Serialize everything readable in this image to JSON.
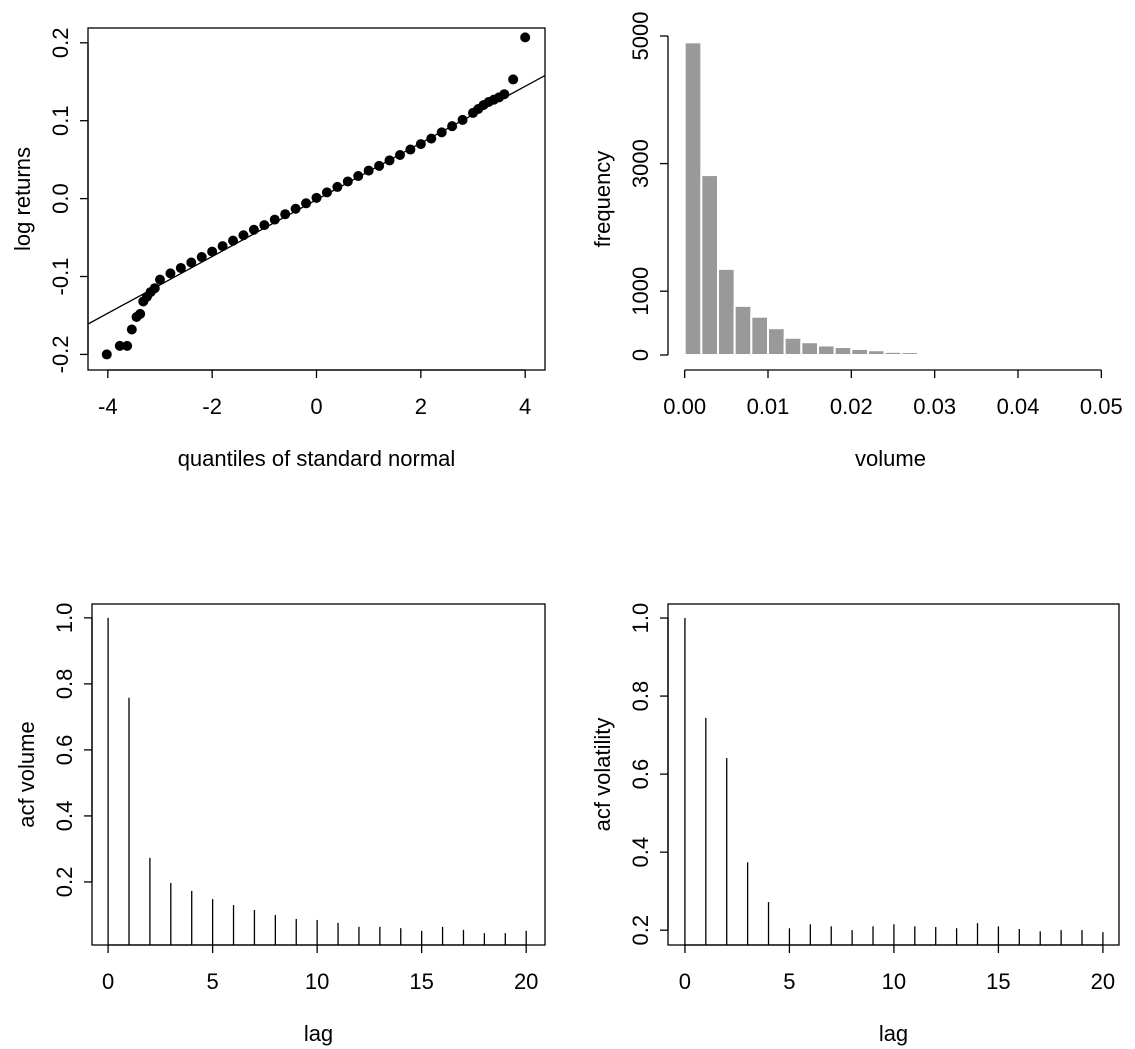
{
  "chart_data": [
    {
      "type": "scatter",
      "xlabel": "quantiles of standard normal",
      "ylabel": "log returns",
      "xlim": [
        -4.38,
        4.38
      ],
      "ylim": [
        -0.22,
        0.219
      ],
      "box": true,
      "color": "#000000",
      "xticks": [
        -4,
        -2,
        0,
        2,
        4
      ],
      "yticks": [
        -0.2,
        -0.1,
        {
          "value": 0,
          "label": "0.0"
        },
        0.1,
        0.2
      ],
      "x": [
        -4.02,
        -3.77,
        -3.63,
        -3.54,
        -3.45,
        -3.38,
        -3.32,
        -3.25,
        -3.18,
        -3.1,
        -3.0,
        -2.8,
        -2.6,
        -2.4,
        -2.2,
        -2.0,
        -1.8,
        -1.6,
        -1.4,
        -1.2,
        -1.0,
        -0.8,
        -0.6,
        -0.4,
        -0.2,
        0,
        0.2,
        0.4,
        0.6,
        0.8,
        1.0,
        1.2,
        1.4,
        1.6,
        1.8,
        2.0,
        2.2,
        2.4,
        2.6,
        2.8,
        3.0,
        3.1,
        3.2,
        3.3,
        3.4,
        3.5,
        3.6,
        3.77,
        4.0
      ],
      "y": [
        -0.2,
        -0.189,
        -0.189,
        -0.168,
        -0.152,
        -0.148,
        -0.132,
        -0.126,
        -0.12,
        -0.115,
        -0.104,
        -0.096,
        -0.089,
        -0.082,
        -0.075,
        -0.068,
        -0.061,
        -0.054,
        -0.047,
        -0.04,
        -0.034,
        -0.027,
        -0.02,
        -0.013,
        -0.006,
        0.001,
        0.008,
        0.015,
        0.022,
        0.029,
        0.036,
        0.042,
        0.049,
        0.056,
        0.063,
        0.07,
        0.077,
        0.085,
        0.093,
        0.101,
        0.11,
        0.115,
        0.12,
        0.124,
        0.127,
        0.13,
        0.134,
        0.153,
        0.207
      ],
      "reference_line": {
        "x": [
          -4.38,
          4.38
        ],
        "y": [
          -0.161,
          0.158
        ]
      }
    },
    {
      "type": "histogram",
      "xlabel": "volume",
      "ylabel": "frequency",
      "xlim": [
        -0.002,
        0.0514
      ],
      "ylim": [
        -235,
        5125
      ],
      "box": false,
      "color": "#999999",
      "xticks": [
        {
          "value": 0,
          "label": "0.00"
        },
        0.01,
        0.02,
        0.03,
        0.04,
        0.05
      ],
      "yticks": [
        0,
        1000,
        3000,
        5000
      ],
      "bins": [
        0,
        0.002,
        0.004,
        0.006,
        0.008,
        0.01,
        0.012,
        0.014,
        0.016,
        0.018,
        0.02,
        0.022,
        0.024,
        0.026,
        0.028,
        0.03,
        0.032,
        0.034,
        0.036,
        0.038,
        0.04,
        0.042,
        0.044,
        0.046,
        0.048,
        0.05
      ],
      "counts": [
        4900,
        2820,
        1350,
        770,
        600,
        420,
        270,
        200,
        150,
        125,
        95,
        75,
        50,
        45,
        30,
        20,
        15,
        10,
        12,
        8,
        20,
        6,
        4,
        3,
        2
      ]
    },
    {
      "type": "stem",
      "xlabel": "lag",
      "ylabel": "acf volume",
      "xlim": [
        -0.77,
        20.9
      ],
      "ylim": [
        0.009,
        1.042
      ],
      "box": true,
      "color": "#000000",
      "xticks": [
        0,
        5,
        10,
        15,
        20
      ],
      "yticks": [
        0.2,
        0.4,
        0.6,
        0.8,
        {
          "value": 1,
          "label": "1.0"
        }
      ],
      "x": [
        0,
        1,
        2,
        3,
        4,
        5,
        6,
        7,
        8,
        9,
        10,
        11,
        12,
        13,
        14,
        15,
        16,
        17,
        18,
        19,
        20
      ],
      "values": [
        1,
        0.758,
        0.273,
        0.197,
        0.173,
        0.148,
        0.13,
        0.115,
        0.1,
        0.088,
        0.085,
        0.076,
        0.064,
        0.064,
        0.06,
        0.052,
        0.064,
        0.055,
        0.045,
        0.045,
        0.052
      ]
    },
    {
      "type": "stem",
      "xlabel": "lag",
      "ylabel": "acf volatility",
      "xlim": [
        -0.81,
        20.77
      ],
      "ylim": [
        0.162,
        1.036
      ],
      "box": true,
      "color": "#000000",
      "xticks": [
        0,
        5,
        10,
        15,
        20
      ],
      "yticks": [
        0.2,
        0.4,
        0.6,
        0.8,
        {
          "value": 1,
          "label": "1.0"
        }
      ],
      "x": [
        0,
        1,
        2,
        3,
        4,
        5,
        6,
        7,
        8,
        9,
        10,
        11,
        12,
        13,
        14,
        15,
        16,
        17,
        18,
        19,
        20
      ],
      "values": [
        1,
        0.744,
        0.641,
        0.374,
        0.272,
        0.205,
        0.215,
        0.21,
        0.2,
        0.21,
        0.215,
        0.21,
        0.208,
        0.205,
        0.218,
        0.21,
        0.203,
        0.197,
        0.2,
        0.2,
        0.195
      ]
    }
  ]
}
